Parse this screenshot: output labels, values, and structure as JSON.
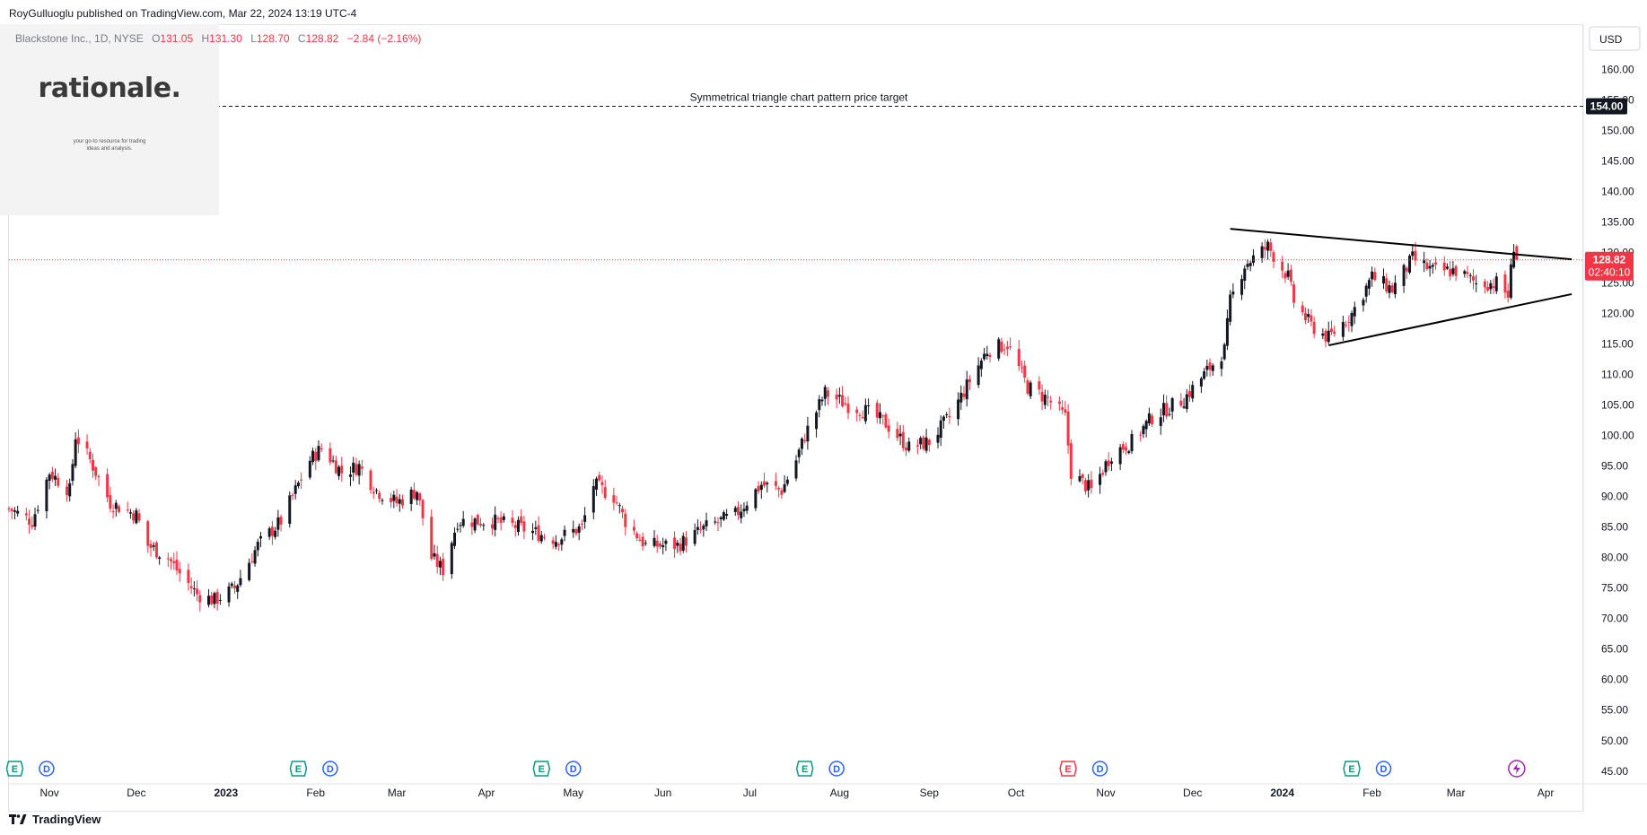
{
  "header": {
    "publish_line": "RoyGulluoglu published on TradingView.com, Mar 22, 2024 13:19 UTC-4"
  },
  "watermark": {
    "brand": "rationale.",
    "tagline_1": "your go-to resource for trading",
    "tagline_2": "ideas and analysis."
  },
  "legend": {
    "symbol": "Blackstone Inc., 1D, NYSE",
    "open_label": "O",
    "open": "131.05",
    "high_label": "H",
    "high": "131.30",
    "low_label": "L",
    "low": "128.70",
    "close_label": "C",
    "close": "128.82",
    "change": "−2.84 (−2.16%)"
  },
  "footer": {
    "brand": "TradingView"
  },
  "colors": {
    "up": "#131722",
    "down": "#f23645",
    "price_line": "#f23645",
    "axis_text": "#131722"
  },
  "chart_data": {
    "type": "candlestick",
    "title": "",
    "currency": "USD",
    "y_ticks": [
      "160.00",
      "155.00",
      "150.00",
      "145.00",
      "140.00",
      "135.00",
      "130.00",
      "125.00",
      "120.00",
      "115.00",
      "110.00",
      "105.00",
      "100.00",
      "95.00",
      "90.00",
      "85.00",
      "80.00",
      "75.00",
      "70.00",
      "65.00",
      "60.00",
      "55.00",
      "50.00",
      "45.00"
    ],
    "ylim": [
      43.2,
      167.3
    ],
    "x_ticks": [
      "Nov",
      "Dec",
      "2023",
      "Feb",
      "Mar",
      "Apr",
      "May",
      "Jun",
      "Jul",
      "Aug",
      "Sep",
      "Oct",
      "Nov",
      "Dec",
      "2024",
      "Feb",
      "Mar",
      "Apr"
    ],
    "x_range": [
      "2022-10-18",
      "2024-04-14"
    ],
    "price_target": {
      "value": 154.0,
      "label": "154.00",
      "annotation": "Symmetrical triangle chart pattern price target"
    },
    "current_price": {
      "value": 128.82,
      "label": "128.82",
      "countdown": "02:40:10"
    },
    "triangle": {
      "upper": [
        [
          "2023-12-14",
          133.9
        ],
        [
          "2024-04-10",
          128.9
        ]
      ],
      "lower": [
        [
          "2024-01-17",
          114.8
        ],
        [
          "2024-04-10",
          123.2
        ]
      ]
    },
    "event_markers": [
      {
        "date": "2022-10-20",
        "type": "E"
      },
      {
        "date": "2022-10-31",
        "type": "D"
      },
      {
        "date": "2023-01-26",
        "type": "E"
      },
      {
        "date": "2023-02-06",
        "type": "D"
      },
      {
        "date": "2023-04-20",
        "type": "E"
      },
      {
        "date": "2023-05-01",
        "type": "D"
      },
      {
        "date": "2023-07-20",
        "type": "E"
      },
      {
        "date": "2023-07-31",
        "type": "D"
      },
      {
        "date": "2023-10-19",
        "type": "E",
        "negative": true
      },
      {
        "date": "2023-10-30",
        "type": "D"
      },
      {
        "date": "2024-01-25",
        "type": "E"
      },
      {
        "date": "2024-02-05",
        "type": "D"
      },
      {
        "date": "2024-03-22",
        "type": "split"
      }
    ],
    "anchors": [
      [
        "2022-10-18",
        88
      ],
      [
        "2022-10-26",
        86
      ],
      [
        "2022-11-01",
        94
      ],
      [
        "2022-11-08",
        91
      ],
      [
        "2022-11-10",
        100
      ],
      [
        "2022-11-15",
        96
      ],
      [
        "2022-11-22",
        89
      ],
      [
        "2022-12-01",
        87
      ],
      [
        "2022-12-05",
        82
      ],
      [
        "2022-12-12",
        80
      ],
      [
        "2022-12-15",
        78
      ],
      [
        "2022-12-22",
        74
      ],
      [
        "2022-12-28",
        73
      ],
      [
        "2023-01-04",
        75
      ],
      [
        "2023-01-12",
        82
      ],
      [
        "2023-01-20",
        86
      ],
      [
        "2023-01-30",
        96
      ],
      [
        "2023-02-03",
        98
      ],
      [
        "2023-02-10",
        94
      ],
      [
        "2023-02-16",
        95
      ],
      [
        "2023-02-22",
        91
      ],
      [
        "2023-03-01",
        89
      ],
      [
        "2023-03-08",
        91
      ],
      [
        "2023-03-13",
        80
      ],
      [
        "2023-03-17",
        78
      ],
      [
        "2023-03-22",
        86
      ],
      [
        "2023-04-03",
        86
      ],
      [
        "2023-04-12",
        85
      ],
      [
        "2023-04-25",
        83
      ],
      [
        "2023-05-04",
        85
      ],
      [
        "2023-05-08",
        92
      ],
      [
        "2023-05-15",
        90
      ],
      [
        "2023-05-19",
        86
      ],
      [
        "2023-05-26",
        82
      ],
      [
        "2023-06-06",
        82
      ],
      [
        "2023-06-16",
        85
      ],
      [
        "2023-06-26",
        87
      ],
      [
        "2023-07-05",
        92
      ],
      [
        "2023-07-12",
        91
      ],
      [
        "2023-07-17",
        96
      ],
      [
        "2023-07-20",
        100
      ],
      [
        "2023-07-27",
        107
      ],
      [
        "2023-08-04",
        105
      ],
      [
        "2023-08-10",
        104
      ],
      [
        "2023-08-17",
        102
      ],
      [
        "2023-08-25",
        98
      ],
      [
        "2023-09-01",
        99
      ],
      [
        "2023-09-08",
        103
      ],
      [
        "2023-09-15",
        109
      ],
      [
        "2023-09-21",
        114
      ],
      [
        "2023-09-28",
        115
      ],
      [
        "2023-10-05",
        108
      ],
      [
        "2023-10-12",
        106
      ],
      [
        "2023-10-18",
        103
      ],
      [
        "2023-10-20",
        94
      ],
      [
        "2023-10-27",
        91
      ],
      [
        "2023-11-03",
        97
      ],
      [
        "2023-11-10",
        99
      ],
      [
        "2023-11-17",
        103
      ],
      [
        "2023-11-28",
        106
      ],
      [
        "2023-12-05",
        110
      ],
      [
        "2023-12-12",
        114
      ],
      [
        "2023-12-14",
        122
      ],
      [
        "2023-12-19",
        128
      ],
      [
        "2023-12-27",
        131
      ],
      [
        "2024-01-03",
        126
      ],
      [
        "2024-01-05",
        122
      ],
      [
        "2024-01-11",
        118
      ],
      [
        "2024-01-17",
        116
      ],
      [
        "2024-01-25",
        120
      ],
      [
        "2024-02-01",
        126
      ],
      [
        "2024-02-08",
        124
      ],
      [
        "2024-02-15",
        129
      ],
      [
        "2024-02-22",
        127
      ],
      [
        "2024-03-01",
        127
      ],
      [
        "2024-03-08",
        125
      ],
      [
        "2024-03-15",
        125
      ],
      [
        "2024-03-19",
        123
      ],
      [
        "2024-03-21",
        131.2
      ],
      [
        "2024-03-22",
        128.82
      ]
    ]
  }
}
